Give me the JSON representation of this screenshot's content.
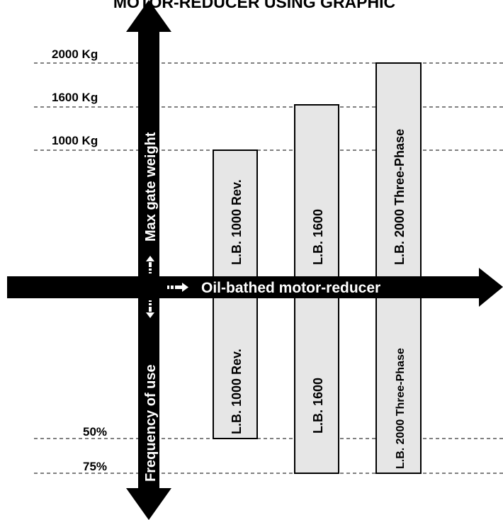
{
  "title": "MOTOR-REDUCER USING GRAPHIC",
  "levels": {
    "weight_2000": "2000 Kg",
    "weight_1600": "1600 Kg",
    "weight_1000": "1000 Kg",
    "use_50": "50%",
    "use_75": "75%"
  },
  "axes": {
    "up_label": "Max gate weight",
    "down_label": "Frequency of use",
    "right_label": "Oil-bathed motor-reducer"
  },
  "bars": [
    {
      "top_label": "L.B. 1000 Rev.",
      "bottom_label": "L.B. 1000 Rev.",
      "max_weight": "1000 Kg",
      "frequency": "50%"
    },
    {
      "top_label": "L.B. 1600",
      "bottom_label": "L.B. 1600",
      "max_weight": "1600 Kg",
      "frequency": "75%"
    },
    {
      "top_label": "L.B. 2000 Three-Phase",
      "bottom_label": "L.B. 2000 Three-Phase",
      "max_weight": "2000 Kg",
      "frequency": "75%"
    }
  ],
  "colors": {
    "bar_fill": "#e6e6e6",
    "arrow": "#000000",
    "axis_text": "#ffffff"
  }
}
